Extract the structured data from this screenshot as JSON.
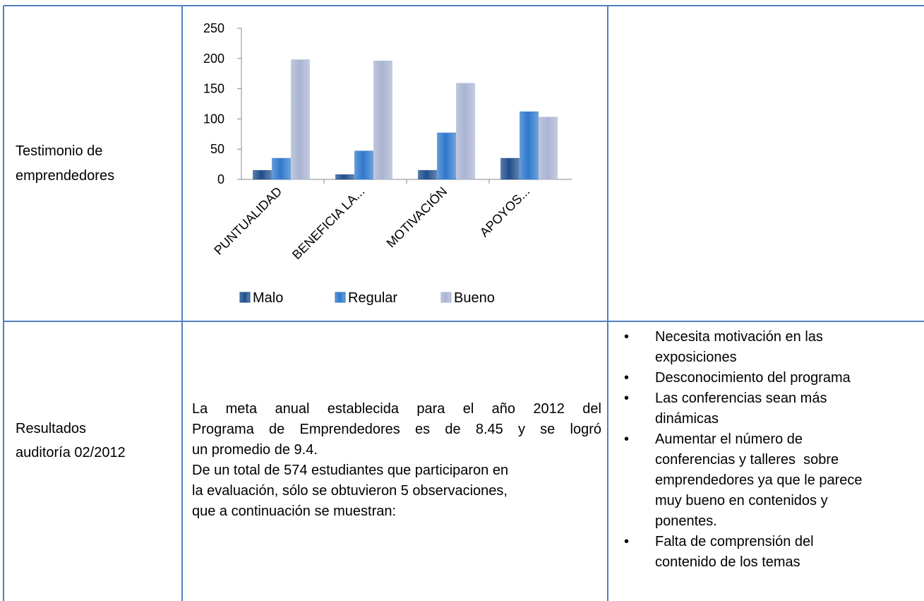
{
  "table": {
    "rows": [
      {
        "label": "Testimonio de emprendedores",
        "chart_data": {
          "type": "bar",
          "categories": [
            "PUNTUALIDAD",
            "BENEFICIA LA...",
            "MOTIVACIÓN",
            "APOYOS..."
          ],
          "series": [
            {
              "name": "Malo",
              "color": "#1f4e8c",
              "values": [
                15,
                8,
                15,
                35
              ]
            },
            {
              "name": "Regular",
              "color": "#2f78cc",
              "values": [
                35,
                47,
                77,
                112
              ]
            },
            {
              "name": "Bueno",
              "color": "#aab4d2",
              "values": [
                198,
                196,
                159,
                103
              ]
            }
          ],
          "ylim": [
            0,
            250
          ],
          "yticks": [
            0,
            50,
            100,
            150,
            200,
            250
          ],
          "legend": "bottom"
        }
      },
      {
        "label": "Resultados auditoría 02/2012",
        "paragraphs": [
          [
            "La meta anual establecida para el año 2012 del",
            "Programa de Emprendedores es de 8.45 y se logró",
            "un promedio de 9.4."
          ],
          [
            "De un total de 574 estudiantes que participaron en",
            "la evaluación, sólo se obtuvieron 5 observaciones,",
            "que a continuación se muestran:"
          ]
        ],
        "bullets": [
          "Necesita motivación en las exposiciones",
          "Desconocimiento del programa",
          "Las conferencias sean más dinámicas",
          "Aumentar el número de conferencias y talleres  sobre emprendedores ya que le parece muy bueno en contenidos y ponentes.",
          "Falta de comprensión del contenido de los temas"
        ]
      }
    ]
  }
}
